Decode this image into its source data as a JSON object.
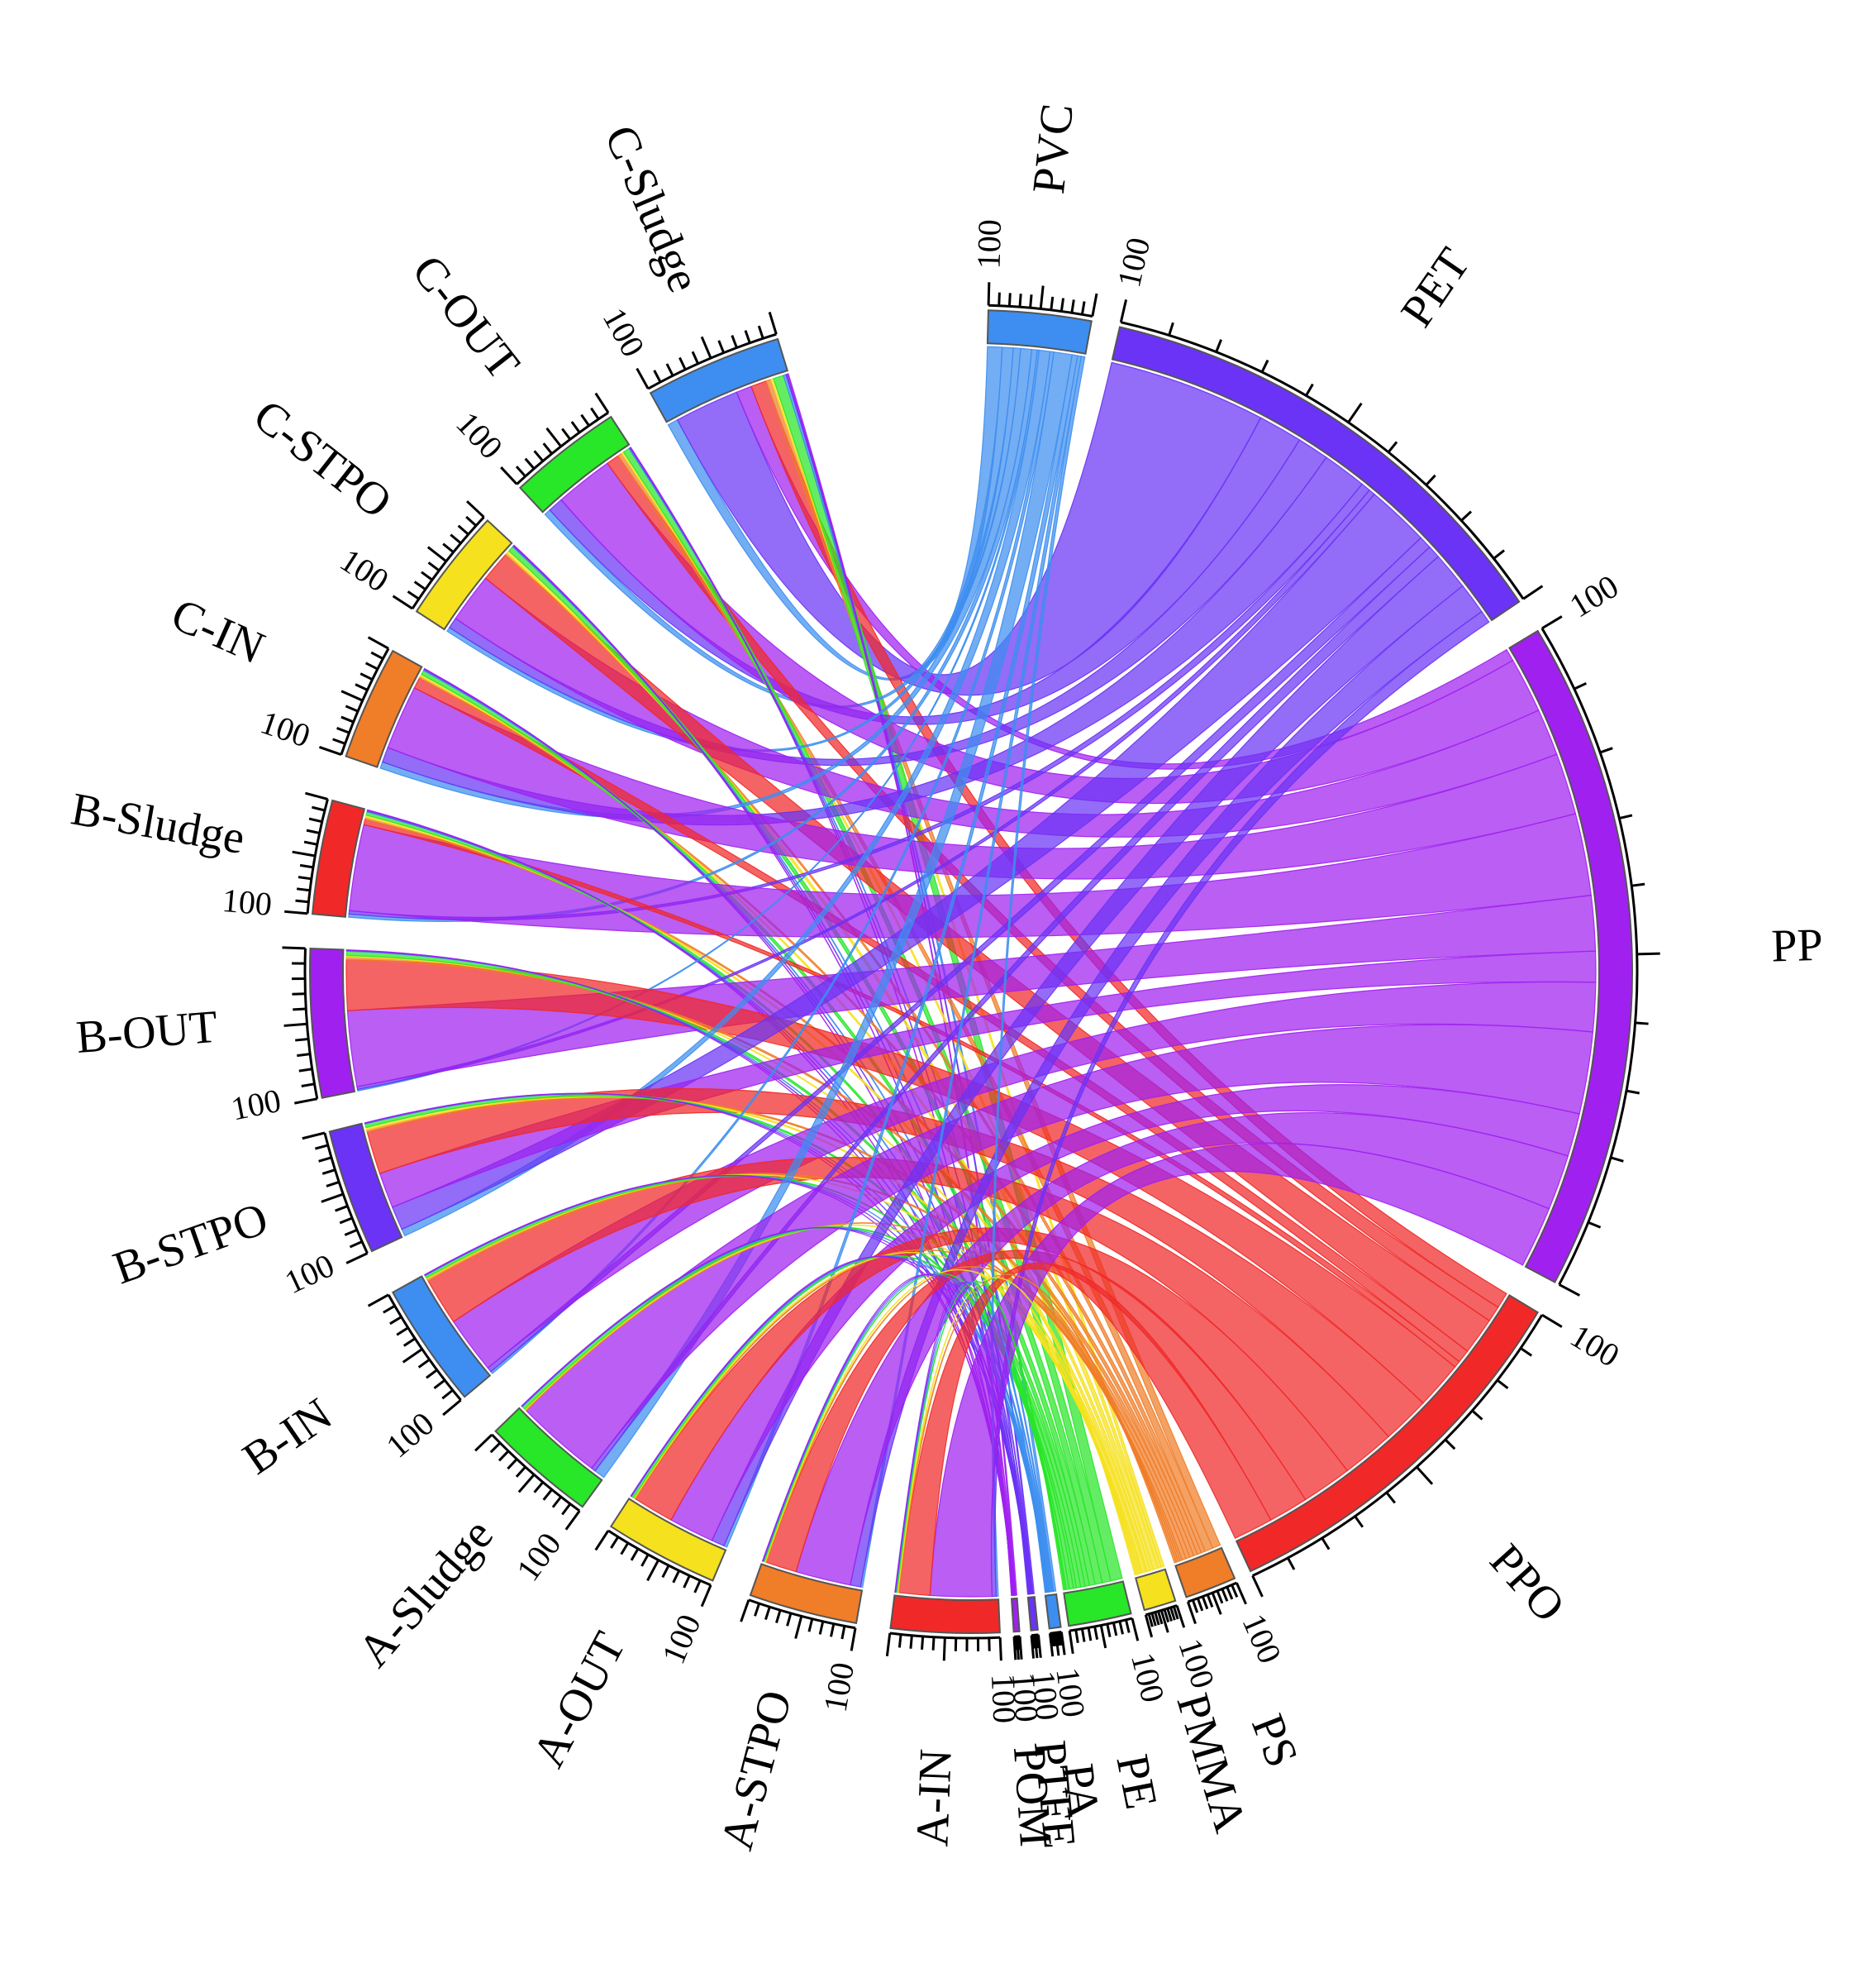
{
  "chart_data": {
    "type": "chord",
    "title": "",
    "tick_label": "100",
    "segments": [
      {
        "name": "PVC",
        "color": "#3d8ef0",
        "total": 100
      },
      {
        "name": "PET",
        "color": "#6a33f5",
        "total": 100
      },
      {
        "name": "PP",
        "color": "#a020f0",
        "total": 100
      },
      {
        "name": "PPO",
        "color": "#f02828",
        "total": 100
      },
      {
        "name": "PS",
        "color": "#f07d28",
        "total": 100
      },
      {
        "name": "PMMA",
        "color": "#f5e11e",
        "total": 100
      },
      {
        "name": "PE",
        "color": "#28e628",
        "total": 100
      },
      {
        "name": "PA",
        "color": "#3d8ef0",
        "total": 100
      },
      {
        "name": "PTFE",
        "color": "#6a33f5",
        "total": 100
      },
      {
        "name": "POM",
        "color": "#a020f0",
        "total": 100
      },
      {
        "name": "A-IN",
        "color": "#f02828",
        "total": 100
      },
      {
        "name": "A-STPO",
        "color": "#f07d28",
        "total": 100
      },
      {
        "name": "A-OUT",
        "color": "#f5e11e",
        "total": 100
      },
      {
        "name": "A-Sludge",
        "color": "#28e628",
        "total": 100
      },
      {
        "name": "B-IN",
        "color": "#3d8ef0",
        "total": 100
      },
      {
        "name": "B-STPO",
        "color": "#6a33f5",
        "total": 100
      },
      {
        "name": "B-OUT",
        "color": "#a020f0",
        "total": 100
      },
      {
        "name": "B-Sludge",
        "color": "#f02828",
        "total": 100
      },
      {
        "name": "C-IN",
        "color": "#f07d28",
        "total": 100
      },
      {
        "name": "C-STPO",
        "color": "#f5e11e",
        "total": 100
      },
      {
        "name": "C-OUT",
        "color": "#28e628",
        "total": 100
      },
      {
        "name": "C-Sludge",
        "color": "#3d8ef0",
        "total": 100
      }
    ],
    "polymers": [
      "PVC",
      "PET",
      "PP",
      "PPO",
      "PS",
      "PMMA",
      "PE",
      "PA",
      "PTFE",
      "POM"
    ],
    "samples": [
      "C-Sludge",
      "C-OUT",
      "C-STPO",
      "C-IN",
      "B-Sludge",
      "B-OUT",
      "B-STPO",
      "B-IN",
      "A-Sludge",
      "A-OUT",
      "A-STPO",
      "A-IN"
    ],
    "matrix_percent": {
      "C-Sludge": {
        "PVC": 8,
        "PET": 50,
        "PP": 12,
        "PPO": 12,
        "PS": 4,
        "PMMA": 2,
        "PE": 8,
        "PA": 2,
        "PTFE": 1,
        "POM": 1
      },
      "C-OUT": {
        "PVC": 6,
        "PET": 14,
        "PP": 54,
        "PPO": 12,
        "PS": 4,
        "PMMA": 2,
        "PE": 6,
        "PA": 1,
        "PTFE": 0.5,
        "POM": 0.5
      },
      "C-STPO": {
        "PVC": 4,
        "PET": 10,
        "PP": 46,
        "PPO": 28,
        "PS": 2,
        "PMMA": 3,
        "PE": 5,
        "PA": 1,
        "PTFE": 0.5,
        "POM": 0.5
      },
      "C-IN": {
        "PVC": 6,
        "PET": 14,
        "PP": 60,
        "PPO": 10,
        "PS": 2,
        "PMMA": 2,
        "PE": 4,
        "PA": 1,
        "PTFE": 0.5,
        "POM": 0.5
      },
      "B-Sludge": {
        "PVC": 3,
        "PET": 3,
        "PP": 80,
        "PPO": 5,
        "PS": 2,
        "PMMA": 2,
        "PE": 3,
        "PA": 1,
        "PTFE": 0.5,
        "POM": 0.5
      },
      "B-OUT": {
        "PVC": 1,
        "PET": 2,
        "PP": 54,
        "PPO": 36,
        "PS": 2,
        "PMMA": 1,
        "PE": 3,
        "PA": 0.5,
        "PTFE": 0.3,
        "POM": 0.2
      },
      "B-STPO": {
        "PVC": 6,
        "PET": 20,
        "PP": 30,
        "PPO": 36,
        "PS": 2,
        "PMMA": 2,
        "PE": 3,
        "PA": 0.5,
        "PTFE": 0.3,
        "POM": 0.2
      },
      "B-IN": {
        "PVC": 2,
        "PET": 4,
        "PP": 48,
        "PPO": 40,
        "PS": 2,
        "PMMA": 1,
        "PE": 2,
        "PA": 0.5,
        "PTFE": 0.3,
        "POM": 0.2
      },
      "A-Sludge": {
        "PVC": 10,
        "PET": 4,
        "PP": 80,
        "PPO": 0,
        "PS": 1,
        "PMMA": 1,
        "PE": 3,
        "PA": 0.5,
        "PTFE": 0.3,
        "POM": 0.2
      },
      "A-OUT": {
        "PVC": 3,
        "PET": 12,
        "PP": 42,
        "PPO": 38,
        "PS": 1,
        "PMMA": 1,
        "PE": 2,
        "PA": 0.5,
        "PTFE": 0.3,
        "POM": 0.2
      },
      "A-STPO": {
        "PVC": 2,
        "PET": 10,
        "PP": 54,
        "PPO": 30,
        "PS": 1,
        "PMMA": 1,
        "PE": 1,
        "PA": 0.5,
        "PTFE": 0.3,
        "POM": 0.2
      },
      "A-IN": {
        "PVC": 2,
        "PET": 4,
        "PP": 60,
        "PPO": 30,
        "PS": 1,
        "PMMA": 1,
        "PE": 1,
        "PA": 0.5,
        "PTFE": 0.3,
        "POM": 0.2
      }
    },
    "legend": "none",
    "grid": false
  }
}
